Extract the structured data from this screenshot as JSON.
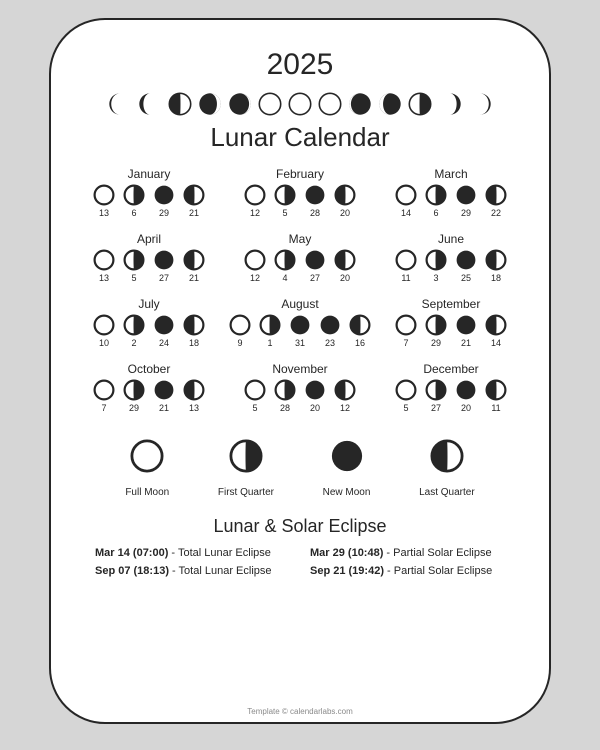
{
  "year": "2025",
  "title": "Lunar Calendar",
  "colors": {
    "page_bg": "#ffffff",
    "outer_bg": "#d6d6d6",
    "ink": "#262626",
    "footer": "#8a8a8a"
  },
  "strip_phases": [
    "waning-crescent-thin",
    "waning-crescent",
    "last-quarter",
    "waning-gibbous",
    "waning-gibbous-fat",
    "full",
    "full",
    "full",
    "waxing-gibbous-fat",
    "waxing-gibbous",
    "first-quarter",
    "waxing-crescent",
    "waxing-crescent-thin"
  ],
  "month_phase_sequence": [
    "full",
    "first-quarter",
    "new",
    "last-quarter"
  ],
  "months": [
    {
      "name": "January",
      "days": [
        13,
        6,
        29,
        21
      ]
    },
    {
      "name": "February",
      "days": [
        12,
        5,
        28,
        20
      ]
    },
    {
      "name": "March",
      "days": [
        14,
        6,
        29,
        22
      ]
    },
    {
      "name": "April",
      "days": [
        13,
        5,
        27,
        21
      ]
    },
    {
      "name": "May",
      "days": [
        12,
        4,
        27,
        20
      ]
    },
    {
      "name": "June",
      "days": [
        11,
        3,
        25,
        18
      ]
    },
    {
      "name": "July",
      "days": [
        10,
        2,
        24,
        18
      ]
    },
    {
      "name": "August",
      "days": [
        9,
        1,
        31,
        23,
        16
      ],
      "phases": [
        "full",
        "first-quarter",
        "new",
        "new",
        "last-quarter"
      ]
    },
    {
      "name": "September",
      "days": [
        7,
        29,
        21,
        14
      ]
    },
    {
      "name": "October",
      "days": [
        7,
        29,
        21,
        13
      ]
    },
    {
      "name": "November",
      "days": [
        5,
        28,
        20,
        12
      ]
    },
    {
      "name": "December",
      "days": [
        5,
        27,
        20,
        11
      ]
    }
  ],
  "legend": [
    {
      "phase": "full",
      "label": "Full Moon"
    },
    {
      "phase": "first-quarter",
      "label": "First Quarter"
    },
    {
      "phase": "new",
      "label": "New Moon"
    },
    {
      "phase": "last-quarter",
      "label": "Last Quarter"
    }
  ],
  "eclipse_title": "Lunar & Solar Eclipse",
  "eclipses": [
    {
      "dt": "Mar 14 (07:00)",
      "desc": "Total Lunar Eclipse"
    },
    {
      "dt": "Mar 29 (10:48)",
      "desc": "Partial Solar Eclipse"
    },
    {
      "dt": "Sep 07 (18:13)",
      "desc": "Total Lunar Eclipse"
    },
    {
      "dt": "Sep 21 (19:42)",
      "desc": "Partial Solar Eclipse"
    }
  ],
  "footer": "Template © calendarlabs.com",
  "icon_sizes": {
    "strip": 24,
    "month": 22,
    "legend": 34
  },
  "stroke_width": 2.2
}
